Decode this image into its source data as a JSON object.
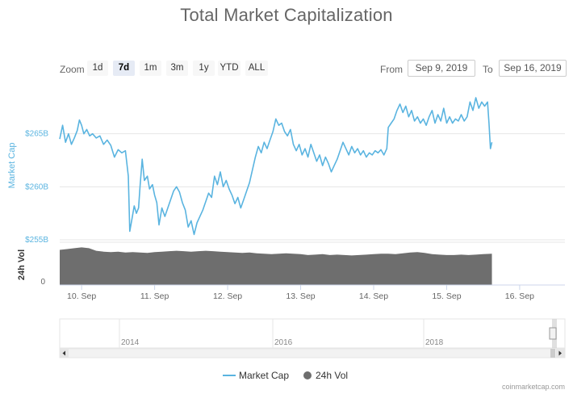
{
  "title": "Total Market Capitalization",
  "zoom": {
    "label": "Zoom",
    "buttons": [
      "1d",
      "7d",
      "1m",
      "3m",
      "1y",
      "YTD",
      "ALL"
    ],
    "active": "7d"
  },
  "range": {
    "from_label": "From",
    "from_value": "Sep 9, 2019",
    "to_label": "To",
    "to_value": "Sep 16, 2019"
  },
  "colors": {
    "market_cap": "#5ab4e0",
    "volume": "#6e6e6e",
    "grid": "#e6e6e6"
  },
  "chart_data": {
    "type": "line",
    "title": "Total Market Capitalization",
    "y_axis": {
      "label": "Market Cap",
      "ticks": [
        "$265B",
        "$260B",
        "$255B"
      ],
      "tick_values": [
        265,
        260,
        255
      ],
      "range": [
        255,
        270
      ]
    },
    "volume_axis": {
      "label": "24h Vol",
      "ticks": [
        "0"
      ]
    },
    "x_axis": {
      "ticks": [
        "10. Sep",
        "11. Sep",
        "12. Sep",
        "13. Sep",
        "14. Sep",
        "15. Sep",
        "16. Sep"
      ],
      "range_days": [
        9.7,
        16.62
      ]
    },
    "series": [
      {
        "name": "Market Cap",
        "unit": "$B",
        "points": [
          [
            9.7,
            264.5
          ],
          [
            9.74,
            265.8
          ],
          [
            9.78,
            264.2
          ],
          [
            9.82,
            265.0
          ],
          [
            9.86,
            264.0
          ],
          [
            9.9,
            264.6
          ],
          [
            9.94,
            265.3
          ],
          [
            9.97,
            266.3
          ],
          [
            10.0,
            265.8
          ],
          [
            10.03,
            265.0
          ],
          [
            10.07,
            265.4
          ],
          [
            10.11,
            264.8
          ],
          [
            10.15,
            265.0
          ],
          [
            10.2,
            264.6
          ],
          [
            10.25,
            264.8
          ],
          [
            10.3,
            264.0
          ],
          [
            10.35,
            264.4
          ],
          [
            10.4,
            263.9
          ],
          [
            10.45,
            262.8
          ],
          [
            10.5,
            263.5
          ],
          [
            10.55,
            263.2
          ],
          [
            10.6,
            263.4
          ],
          [
            10.64,
            261.0
          ],
          [
            10.66,
            255.8
          ],
          [
            10.69,
            257.0
          ],
          [
            10.72,
            258.2
          ],
          [
            10.75,
            257.5
          ],
          [
            10.78,
            258.0
          ],
          [
            10.8,
            260.0
          ],
          [
            10.83,
            262.6
          ],
          [
            10.86,
            260.6
          ],
          [
            10.9,
            261.0
          ],
          [
            10.93,
            259.8
          ],
          [
            10.97,
            260.2
          ],
          [
            11.0,
            259.2
          ],
          [
            11.03,
            258.5
          ],
          [
            11.06,
            256.4
          ],
          [
            11.1,
            258.0
          ],
          [
            11.14,
            257.2
          ],
          [
            11.18,
            258.0
          ],
          [
            11.22,
            258.8
          ],
          [
            11.26,
            259.6
          ],
          [
            11.3,
            260.0
          ],
          [
            11.34,
            259.5
          ],
          [
            11.38,
            258.5
          ],
          [
            11.42,
            257.8
          ],
          [
            11.46,
            256.2
          ],
          [
            11.5,
            256.8
          ],
          [
            11.54,
            255.5
          ],
          [
            11.58,
            256.6
          ],
          [
            11.62,
            257.2
          ],
          [
            11.66,
            257.8
          ],
          [
            11.7,
            258.6
          ],
          [
            11.74,
            259.4
          ],
          [
            11.78,
            259.0
          ],
          [
            11.82,
            261.0
          ],
          [
            11.86,
            260.2
          ],
          [
            11.9,
            261.4
          ],
          [
            11.94,
            260.0
          ],
          [
            11.98,
            260.6
          ],
          [
            12.02,
            259.8
          ],
          [
            12.06,
            259.2
          ],
          [
            12.1,
            258.4
          ],
          [
            12.14,
            259.0
          ],
          [
            12.18,
            258.0
          ],
          [
            12.22,
            258.8
          ],
          [
            12.26,
            259.6
          ],
          [
            12.3,
            260.4
          ],
          [
            12.34,
            261.6
          ],
          [
            12.38,
            262.8
          ],
          [
            12.42,
            263.8
          ],
          [
            12.46,
            263.2
          ],
          [
            12.5,
            264.2
          ],
          [
            12.54,
            263.6
          ],
          [
            12.58,
            264.4
          ],
          [
            12.62,
            265.2
          ],
          [
            12.66,
            266.4
          ],
          [
            12.7,
            265.8
          ],
          [
            12.74,
            266.0
          ],
          [
            12.78,
            265.2
          ],
          [
            12.82,
            264.8
          ],
          [
            12.86,
            265.4
          ],
          [
            12.9,
            264.0
          ],
          [
            12.94,
            263.4
          ],
          [
            12.98,
            264.0
          ],
          [
            13.02,
            263.0
          ],
          [
            13.06,
            263.6
          ],
          [
            13.1,
            262.8
          ],
          [
            13.14,
            264.0
          ],
          [
            13.18,
            263.2
          ],
          [
            13.22,
            262.4
          ],
          [
            13.26,
            263.0
          ],
          [
            13.3,
            262.0
          ],
          [
            13.34,
            262.8
          ],
          [
            13.38,
            262.2
          ],
          [
            13.42,
            261.4
          ],
          [
            13.46,
            262.0
          ],
          [
            13.5,
            262.6
          ],
          [
            13.54,
            263.4
          ],
          [
            13.58,
            264.2
          ],
          [
            13.62,
            263.6
          ],
          [
            13.66,
            263.0
          ],
          [
            13.7,
            263.8
          ],
          [
            13.74,
            263.2
          ],
          [
            13.78,
            263.6
          ],
          [
            13.82,
            263.0
          ],
          [
            13.86,
            263.4
          ],
          [
            13.9,
            262.8
          ],
          [
            13.94,
            263.2
          ],
          [
            13.98,
            263.0
          ],
          [
            14.02,
            263.4
          ],
          [
            14.06,
            263.2
          ],
          [
            14.1,
            263.5
          ],
          [
            14.14,
            263.0
          ],
          [
            14.18,
            263.6
          ],
          [
            14.2,
            265.6
          ],
          [
            14.24,
            266.0
          ],
          [
            14.28,
            266.4
          ],
          [
            14.32,
            267.2
          ],
          [
            14.36,
            267.8
          ],
          [
            14.4,
            267.0
          ],
          [
            14.44,
            267.6
          ],
          [
            14.48,
            266.6
          ],
          [
            14.52,
            267.2
          ],
          [
            14.56,
            266.2
          ],
          [
            14.6,
            266.6
          ],
          [
            14.64,
            266.0
          ],
          [
            14.68,
            266.4
          ],
          [
            14.72,
            265.8
          ],
          [
            14.76,
            266.6
          ],
          [
            14.8,
            267.2
          ],
          [
            14.84,
            266.0
          ],
          [
            14.88,
            266.8
          ],
          [
            14.92,
            266.2
          ],
          [
            14.96,
            267.4
          ],
          [
            15.0,
            266.0
          ],
          [
            15.04,
            266.6
          ],
          [
            15.08,
            266.0
          ],
          [
            15.12,
            266.4
          ],
          [
            15.16,
            266.2
          ],
          [
            15.2,
            266.8
          ],
          [
            15.24,
            266.2
          ],
          [
            15.28,
            266.6
          ],
          [
            15.32,
            268.0
          ],
          [
            15.36,
            267.2
          ],
          [
            15.4,
            268.4
          ],
          [
            15.44,
            267.4
          ],
          [
            15.48,
            268.0
          ],
          [
            15.52,
            267.6
          ],
          [
            15.56,
            268.0
          ],
          [
            15.58,
            266.0
          ],
          [
            15.6,
            263.6
          ],
          [
            15.62,
            264.2
          ]
        ]
      },
      {
        "name": "24h Vol",
        "type": "area",
        "points": [
          [
            9.7,
            0.82
          ],
          [
            9.8,
            0.84
          ],
          [
            9.9,
            0.86
          ],
          [
            10.0,
            0.88
          ],
          [
            10.1,
            0.86
          ],
          [
            10.2,
            0.8
          ],
          [
            10.3,
            0.78
          ],
          [
            10.4,
            0.77
          ],
          [
            10.5,
            0.78
          ],
          [
            10.6,
            0.76
          ],
          [
            10.7,
            0.77
          ],
          [
            10.8,
            0.76
          ],
          [
            10.9,
            0.75
          ],
          [
            11.0,
            0.77
          ],
          [
            11.1,
            0.78
          ],
          [
            11.2,
            0.79
          ],
          [
            11.3,
            0.8
          ],
          [
            11.4,
            0.79
          ],
          [
            11.5,
            0.78
          ],
          [
            11.6,
            0.79
          ],
          [
            11.7,
            0.8
          ],
          [
            11.8,
            0.79
          ],
          [
            11.9,
            0.78
          ],
          [
            12.0,
            0.77
          ],
          [
            12.1,
            0.76
          ],
          [
            12.2,
            0.75
          ],
          [
            12.3,
            0.76
          ],
          [
            12.4,
            0.74
          ],
          [
            12.5,
            0.73
          ],
          [
            12.6,
            0.72
          ],
          [
            12.7,
            0.73
          ],
          [
            12.8,
            0.74
          ],
          [
            12.9,
            0.73
          ],
          [
            13.0,
            0.72
          ],
          [
            13.1,
            0.7
          ],
          [
            13.2,
            0.71
          ],
          [
            13.3,
            0.72
          ],
          [
            13.4,
            0.7
          ],
          [
            13.5,
            0.71
          ],
          [
            13.6,
            0.7
          ],
          [
            13.7,
            0.69
          ],
          [
            13.8,
            0.7
          ],
          [
            13.9,
            0.71
          ],
          [
            14.0,
            0.72
          ],
          [
            14.1,
            0.73
          ],
          [
            14.2,
            0.73
          ],
          [
            14.3,
            0.72
          ],
          [
            14.4,
            0.74
          ],
          [
            14.5,
            0.76
          ],
          [
            14.6,
            0.77
          ],
          [
            14.7,
            0.75
          ],
          [
            14.8,
            0.72
          ],
          [
            14.9,
            0.71
          ],
          [
            15.0,
            0.7
          ],
          [
            15.1,
            0.7
          ],
          [
            15.2,
            0.71
          ],
          [
            15.3,
            0.7
          ],
          [
            15.4,
            0.71
          ],
          [
            15.5,
            0.72
          ],
          [
            15.62,
            0.73
          ]
        ]
      }
    ],
    "legend": [
      "Market Cap",
      "24h Vol"
    ],
    "legend_position": "bottom-center",
    "grid": true
  },
  "navigator": {
    "labels": [
      "2014",
      "2016",
      "2018"
    ]
  },
  "credit": "coinmarketcap.com"
}
